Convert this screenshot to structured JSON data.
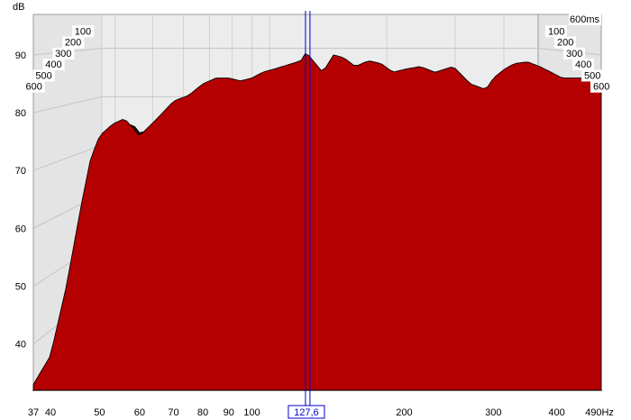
{
  "chart_data": {
    "type": "waterfall",
    "title": "",
    "y_unit": "dB",
    "x_unit": "Hz",
    "x_scale": "log",
    "xlim": [
      37,
      490
    ],
    "ylim": [
      32,
      97
    ],
    "y_ticks": [
      40,
      50,
      60,
      70,
      80,
      90
    ],
    "x_ticks": [
      37,
      40,
      50,
      60,
      70,
      80,
      90,
      100,
      200,
      300,
      400
    ],
    "x_end_label": "490Hz",
    "time_axis_unit": "ms",
    "time_ticks": [
      100,
      200,
      300,
      400,
      500,
      600
    ],
    "time_end_label": "600ms",
    "cursor": {
      "frequency": 127.6,
      "label": "127,6"
    },
    "fill_color": "#b40000",
    "outline_color": "#000000",
    "cursor_color": "#0000cc",
    "front_slice_response": {
      "frequency_hz": [
        37,
        40,
        43,
        46,
        48,
        50,
        53,
        56,
        60,
        65,
        70,
        75,
        80,
        85,
        90,
        95,
        100,
        105,
        110,
        115,
        120,
        125,
        128,
        132,
        138,
        145,
        152,
        160,
        170,
        180,
        190,
        200,
        215,
        230,
        250,
        270,
        290,
        300,
        315,
        330,
        350,
        370,
        390,
        410,
        440,
        470,
        490
      ],
      "level_db": [
        33,
        38,
        50,
        64,
        72,
        76,
        78,
        79,
        76,
        79,
        82,
        83,
        85,
        86,
        86,
        85.5,
        86,
        87,
        87.5,
        88,
        88.5,
        89,
        90.5,
        89,
        87,
        90,
        89.5,
        88,
        89,
        88.5,
        87,
        87.5,
        88,
        87,
        88,
        85,
        84,
        86,
        87.5,
        88.5,
        88.8,
        88,
        87,
        86,
        86,
        86,
        85
      ]
    }
  }
}
